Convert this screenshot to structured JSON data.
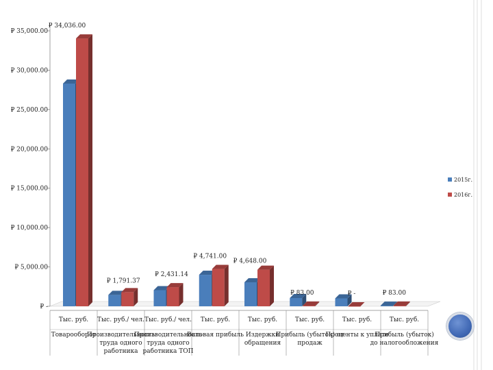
{
  "chart_data": {
    "type": "bar",
    "title": "",
    "xlabel": "",
    "ylabel": "",
    "ylim": [
      0,
      35000
    ],
    "y_ticks": [
      "₽ -",
      "₽ 5,000.00",
      "₽ 10,000.00",
      "₽ 15,000.00",
      "₽ 20,000.00",
      "₽ 25,000.00",
      "₽ 30,000.00",
      "₽ 35,000.00"
    ],
    "y_tick_values": [
      0,
      5000,
      10000,
      15000,
      20000,
      25000,
      30000,
      35000
    ],
    "grid": false,
    "style": "3d-clustered-column",
    "legend_position": "right",
    "colors": {
      "2015": "#4a7ebb",
      "2016": "#be4b48"
    },
    "categories": [
      {
        "unit": "Тыс. руб.",
        "name": "Товарооборот"
      },
      {
        "unit": "Тыс. руб./ чел.",
        "name": "Производительность труда одного работника"
      },
      {
        "unit": "Тыс. руб./ чел.",
        "name": "Производительность труда одного работника ТОП"
      },
      {
        "unit": "Тыс. руб.",
        "name": "Валовая прибыль"
      },
      {
        "unit": "Тыс. руб.",
        "name": "Издержки обращения"
      },
      {
        "unit": "Тыс. руб.",
        "name": "Прибыль (убыток) от продаж"
      },
      {
        "unit": "Тыс. руб.",
        "name": "Проценты к уплате"
      },
      {
        "unit": "Тыс. руб.",
        "name": "Прибыль (убыток) до налогообложения"
      }
    ],
    "category_name_lines": [
      [
        "Товарооборот"
      ],
      [
        "Производительность",
        "труда одного",
        "работника"
      ],
      [
        "Производительность",
        "труда одного",
        "работника ТОП"
      ],
      [
        "Валовая прибыль"
      ],
      [
        "Издержки",
        "обращения"
      ],
      [
        "Прибыль (убыток) от",
        "продаж"
      ],
      [
        "Проценты к уплате"
      ],
      [
        "Прибыль (убыток)",
        "до налогообложения"
      ]
    ],
    "series": [
      {
        "name": "2015г.",
        "values": [
          28300,
          1450,
          2050,
          4000,
          3050,
          1050,
          1000,
          80
        ]
      },
      {
        "name": "2016г.",
        "values": [
          34036,
          1791.37,
          2431.14,
          4741,
          4648,
          83,
          0,
          83
        ]
      }
    ],
    "data_labels": [
      "₽ 34,036.00",
      "₽ 1,791.37",
      "₽ 2,431.14",
      "₽ 4,741.00",
      "₽ 4,648.00",
      "₽ 83.00",
      "₽ -",
      "₽ 83.00"
    ]
  }
}
